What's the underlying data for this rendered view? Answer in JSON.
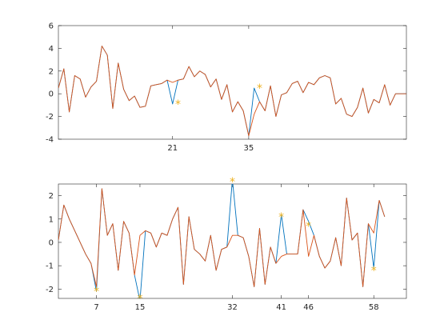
{
  "colors": {
    "background": "#ffffff",
    "axis": "#262626",
    "blue": "#0072bd",
    "orange": "#d95319",
    "star": "#edb120"
  },
  "chart_data": [
    {
      "type": "line",
      "title": "",
      "xlabel": "",
      "ylabel": "",
      "xlim": [
        0,
        64
      ],
      "ylim": [
        -4,
        6
      ],
      "x_ticks": [
        21,
        35
      ],
      "y_ticks": [
        -4,
        -2,
        0,
        2,
        4,
        6
      ],
      "grid": false,
      "x": [
        0,
        1,
        2,
        3,
        4,
        5,
        6,
        7,
        8,
        9,
        10,
        11,
        12,
        13,
        14,
        15,
        16,
        17,
        18,
        19,
        20,
        21,
        22,
        23,
        24,
        25,
        26,
        27,
        28,
        29,
        30,
        31,
        32,
        33,
        34,
        35,
        36,
        37,
        38,
        39,
        40,
        41,
        42,
        43,
        44,
        45,
        46,
        47,
        48,
        49,
        50,
        51,
        52,
        53,
        54,
        55,
        56,
        57,
        58,
        59,
        60,
        61,
        62,
        63,
        64
      ],
      "series": [
        {
          "color": "blue",
          "values": [
            0.5,
            2.2,
            -1.6,
            1.6,
            1.3,
            -0.3,
            0.6,
            1.1,
            4.2,
            3.4,
            -1.3,
            2.7,
            0.4,
            -0.6,
            -0.2,
            -1.2,
            -1.1,
            0.7,
            0.8,
            0.9,
            1.2,
            -0.9,
            1.2,
            1.3,
            2.4,
            1.5,
            2.0,
            1.7,
            0.6,
            1.3,
            -0.5,
            0.8,
            -1.6,
            -0.7,
            -1.5,
            -3.7,
            0.5,
            -0.7,
            -1.5,
            0.7,
            -2.0,
            -0.1,
            0.1,
            0.9,
            1.1,
            0.1,
            1.0,
            0.8,
            1.4,
            1.6,
            1.4,
            -0.9,
            -0.4,
            -1.8,
            -2.0,
            -1.2,
            0.5,
            -1.7,
            -0.5,
            -0.8,
            0.8,
            -1.0,
            0.0,
            0.0,
            0.0
          ]
        },
        {
          "color": "orange",
          "values": [
            0.5,
            2.2,
            -1.6,
            1.6,
            1.3,
            -0.3,
            0.6,
            1.1,
            4.2,
            3.4,
            -1.3,
            2.7,
            0.4,
            -0.6,
            -0.2,
            -1.2,
            -1.1,
            0.7,
            0.8,
            0.9,
            1.2,
            1.0,
            1.2,
            1.3,
            2.4,
            1.5,
            2.0,
            1.7,
            0.6,
            1.3,
            -0.5,
            0.8,
            -1.6,
            -0.7,
            -1.5,
            -3.7,
            -1.8,
            -0.7,
            -1.5,
            0.7,
            -2.0,
            -0.1,
            0.1,
            0.9,
            1.1,
            0.1,
            1.0,
            0.8,
            1.4,
            1.6,
            1.4,
            -0.9,
            -0.4,
            -1.8,
            -2.0,
            -1.2,
            0.5,
            -1.7,
            -0.5,
            -0.8,
            0.8,
            -1.0,
            0.0,
            0.0,
            0.0
          ]
        }
      ],
      "markers": [
        {
          "x": 22,
          "y": -0.9,
          "symbol": "*",
          "color": "star"
        },
        {
          "x": 37,
          "y": 0.5,
          "symbol": "*",
          "color": "star"
        }
      ]
    },
    {
      "type": "line",
      "title": "",
      "xlabel": "",
      "ylabel": "",
      "xlim": [
        0,
        64
      ],
      "ylim": [
        -2.4,
        2.5
      ],
      "x_ticks": [
        7,
        15,
        32,
        41,
        46,
        58
      ],
      "y_ticks": [
        -2,
        -1,
        0,
        1,
        2
      ],
      "grid": false,
      "x": [
        0,
        1,
        2,
        3,
        4,
        5,
        6,
        7,
        8,
        9,
        10,
        11,
        12,
        13,
        14,
        15,
        16,
        17,
        18,
        19,
        20,
        21,
        22,
        23,
        24,
        25,
        26,
        27,
        28,
        29,
        30,
        31,
        32,
        33,
        34,
        35,
        36,
        37,
        38,
        39,
        40,
        41,
        42,
        43,
        44,
        45,
        46,
        47,
        48,
        49,
        50,
        51,
        52,
        53,
        54,
        55,
        56,
        57,
        58,
        59,
        60
      ],
      "series": [
        {
          "color": "blue",
          "values": [
            0.1,
            1.6,
            1.0,
            0.5,
            0.0,
            -0.5,
            -0.9,
            -2.1,
            2.3,
            0.3,
            0.8,
            -1.2,
            0.9,
            0.4,
            -1.4,
            -2.5,
            0.5,
            0.4,
            -0.2,
            0.4,
            0.3,
            1.0,
            1.5,
            -1.8,
            1.1,
            -0.3,
            -0.5,
            -0.8,
            0.3,
            -1.2,
            -0.3,
            -0.2,
            2.7,
            0.3,
            0.2,
            -0.6,
            -1.9,
            0.6,
            -1.8,
            -0.2,
            -0.9,
            1.2,
            -0.5,
            -0.5,
            -0.5,
            1.4,
            0.9,
            0.3,
            -0.6,
            -1.1,
            -0.8,
            0.2,
            -1.0,
            1.9,
            0.1,
            0.4,
            -1.9,
            0.8,
            -1.1,
            1.8,
            1.1
          ]
        },
        {
          "color": "orange",
          "values": [
            0.1,
            1.6,
            1.0,
            0.5,
            0.0,
            -0.5,
            -0.9,
            -1.9,
            2.3,
            0.3,
            0.8,
            -1.2,
            0.9,
            0.4,
            -1.4,
            0.3,
            0.5,
            0.4,
            -0.2,
            0.4,
            0.3,
            1.0,
            1.5,
            -1.8,
            1.1,
            -0.3,
            -0.5,
            -0.8,
            0.3,
            -1.2,
            -0.3,
            -0.2,
            0.3,
            0.3,
            0.2,
            -0.6,
            -1.9,
            0.6,
            -1.8,
            -0.2,
            -0.9,
            -0.6,
            -0.5,
            -0.5,
            -0.5,
            1.4,
            -0.6,
            0.3,
            -0.6,
            -1.1,
            -0.8,
            0.2,
            -1.0,
            1.9,
            0.1,
            0.4,
            -1.9,
            0.8,
            0.4,
            1.8,
            1.1
          ]
        }
      ],
      "markers": [
        {
          "x": 7,
          "y": -2.1,
          "symbol": "*",
          "color": "star"
        },
        {
          "x": 15,
          "y": -2.4,
          "symbol": "*",
          "color": "star"
        },
        {
          "x": 32,
          "y": 2.6,
          "symbol": "*",
          "color": "star"
        },
        {
          "x": 41,
          "y": 1.1,
          "symbol": "*",
          "color": "star"
        },
        {
          "x": 46,
          "y": 0.7,
          "symbol": "*",
          "color": "star"
        },
        {
          "x": 58,
          "y": -1.2,
          "symbol": "*",
          "color": "star"
        }
      ]
    }
  ]
}
